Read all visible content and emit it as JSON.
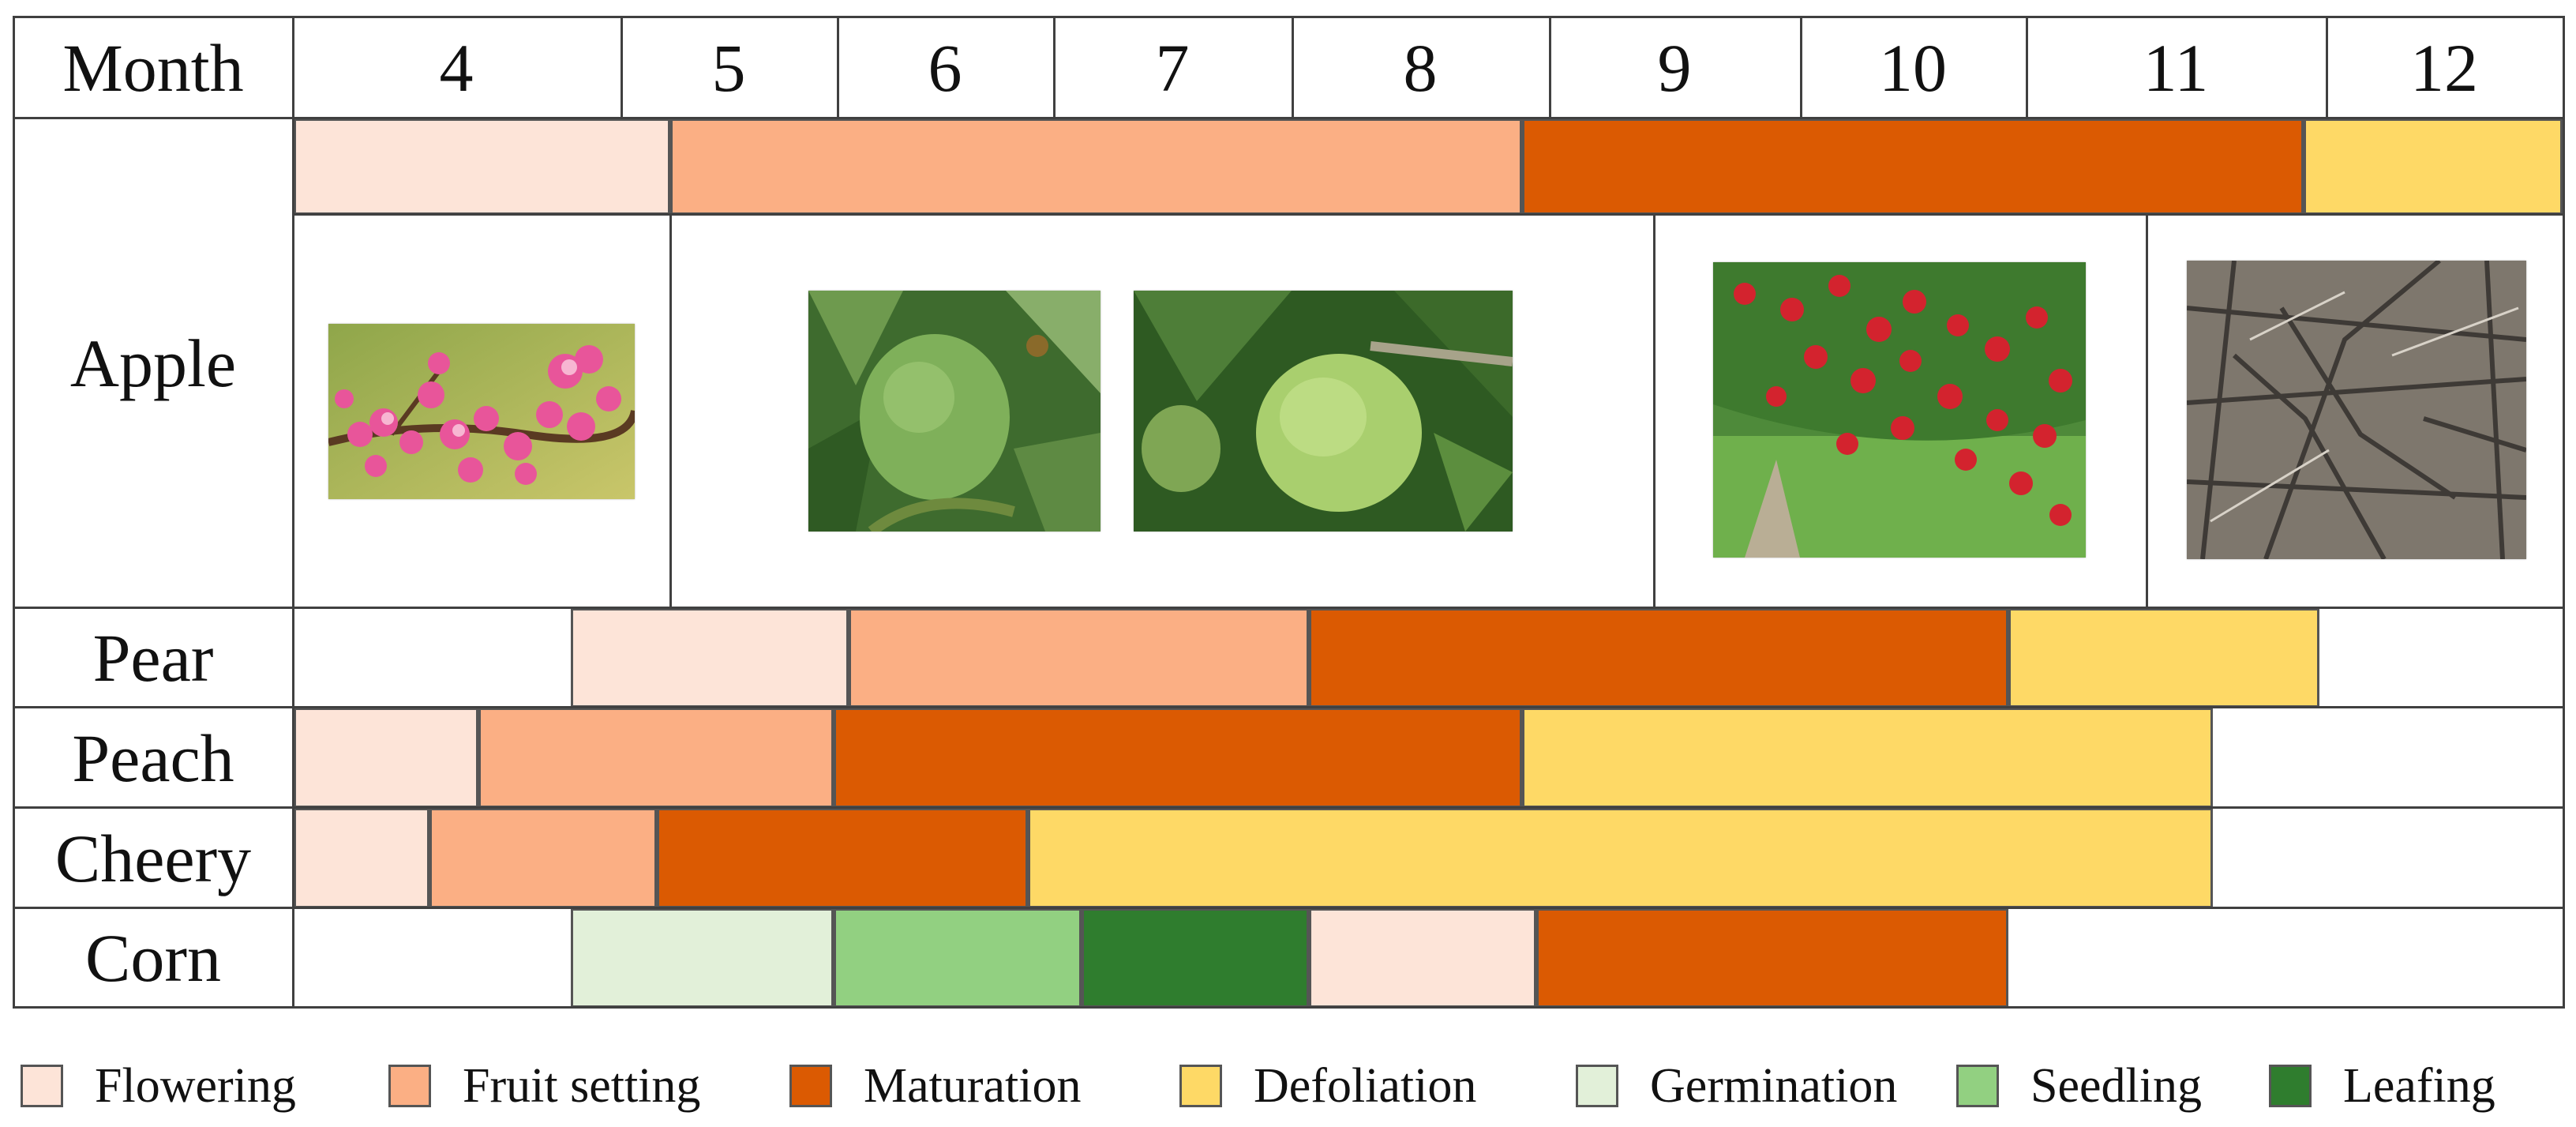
{
  "header": {
    "month_label": "Month",
    "months": [
      "4",
      "5",
      "6",
      "7",
      "8",
      "9",
      "10",
      "11",
      "12"
    ]
  },
  "crops": [
    "Apple",
    "Pear",
    "Peach",
    "Cheery",
    "Corn"
  ],
  "colors": {
    "flowering": "#FDE4D8",
    "fruit_setting": "#FBAF84",
    "maturation": "#DB5A02",
    "defoliation": "#FED966",
    "germination": "#E2F0D9",
    "seedling": "#92D081",
    "leafing": "#2F7D2E",
    "grid": "#404040"
  },
  "legend": [
    {
      "key": "flowering",
      "label": "Flowering"
    },
    {
      "key": "fruit_setting",
      "label": "Fruit setting"
    },
    {
      "key": "maturation",
      "label": "Maturation"
    },
    {
      "key": "defoliation",
      "label": "Defoliation"
    },
    {
      "key": "germination",
      "label": "Germination"
    },
    {
      "key": "seedling",
      "label": "Seedling"
    },
    {
      "key": "leafing",
      "label": "Leafing"
    }
  ],
  "photos": [
    {
      "icon": "peach-blossom-photo-icon",
      "stage": "flowering"
    },
    {
      "icon": "green-apple-on-branch-photo-icon",
      "stage": "fruit_setting"
    },
    {
      "icon": "green-apple-photo-icon",
      "stage": "fruit_setting"
    },
    {
      "icon": "red-apple-tree-photo-icon",
      "stage": "maturation"
    },
    {
      "icon": "bare-branches-photo-icon",
      "stage": "defoliation"
    }
  ]
}
